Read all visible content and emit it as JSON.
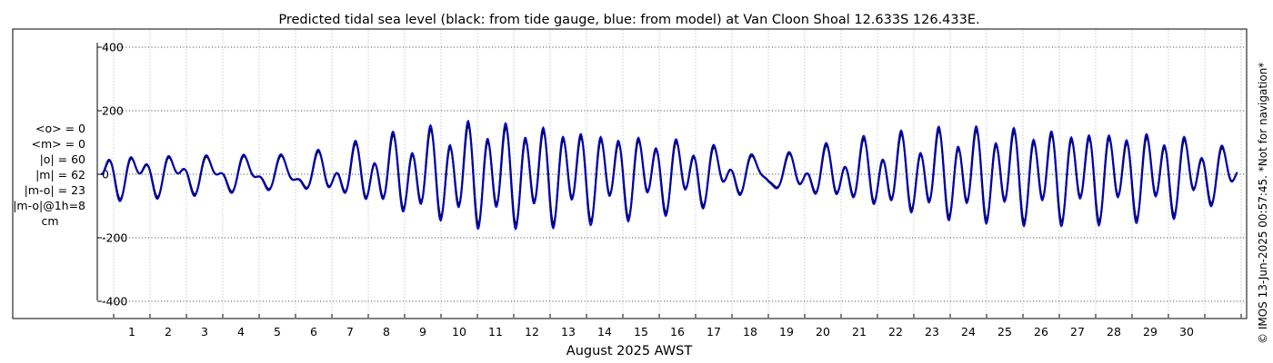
{
  "chart_data": {
    "type": "line",
    "title": "Predicted tidal sea level (black: from tide gauge, blue: from model) at Van Cloon Shoal 12.633S 126.433E.",
    "xlabel": "August 2025 AWST",
    "ylabel": "",
    "ylim": [
      -400,
      400
    ],
    "xlim": [
      -0.35,
      30.9
    ],
    "yticks": [
      -400,
      -200,
      0,
      200,
      400
    ],
    "xticks": [
      1,
      2,
      3,
      4,
      5,
      6,
      7,
      8,
      9,
      10,
      11,
      12,
      13,
      14,
      15,
      16,
      17,
      18,
      19,
      20,
      21,
      22,
      23,
      24,
      25,
      26,
      27,
      28,
      29,
      30
    ],
    "grid": true,
    "series": [
      {
        "name": "from tide gauge",
        "color": "#000000",
        "tidal_model": {
          "days_window": [
            -0.35,
            30.9
          ],
          "constituents": [
            {
              "period_hours": 12.4206,
              "amplitude": [
                [
                  0,
                  40
                ],
                [
                  3,
                  25
                ],
                [
                  5,
                  20
                ],
                [
                  6,
                  40
                ],
                [
                  8,
                  95
                ],
                [
                  10,
                  130
                ],
                [
                  12,
                  120
                ],
                [
                  14,
                  100
                ],
                [
                  16,
                  75
                ],
                [
                  17,
                  40
                ],
                [
                  18,
                  10
                ],
                [
                  19,
                  40
                ],
                [
                  21,
                  80
                ],
                [
                  23,
                  110
                ],
                [
                  25,
                  115
                ],
                [
                  27,
                  110
                ],
                [
                  29,
                  100
                ],
                [
                  30.9,
                  40
                ]
              ]
            },
            {
              "period_hours": 23.9345,
              "amplitude": [
                [
                  0,
                  40
                ],
                [
                  30.9,
                  40
                ]
              ]
            }
          ]
        }
      },
      {
        "name": "from model",
        "color": "#0000cc",
        "offset_from_gauge": {
          "amplitude_scale": 1.08,
          "phase_shift_hours": 0.15
        }
      }
    ],
    "stats": [
      "<o> = 0",
      "<m> = 0",
      "|o| = 60",
      "|m| = 62",
      "|m-o| = 23",
      "|m-o|@1h=8",
      "cm"
    ],
    "side_note": "© IMOS 13-Jun-2025 00:57:45.  *Not for navigation*"
  }
}
